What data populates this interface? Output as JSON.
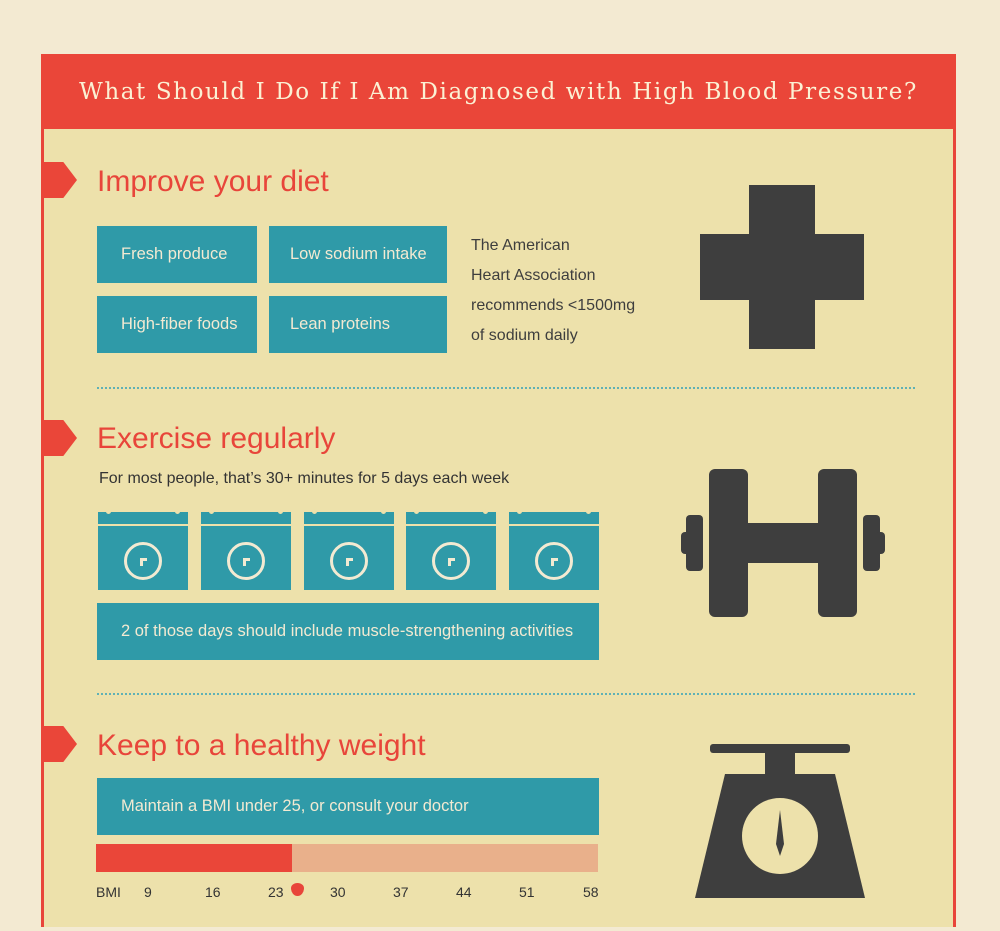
{
  "header": {
    "title": "What Should I Do If I Am Diagnosed with High Blood Pressure?"
  },
  "diet": {
    "title": "Improve your diet",
    "tiles": [
      "Fresh produce",
      "Low sodium intake",
      "High-fiber foods",
      "Lean proteins"
    ],
    "note_lines": [
      "The American",
      "Heart Association",
      "recommends <1500mg",
      "of sodium daily"
    ],
    "icon": "medical-cross-icon"
  },
  "exercise": {
    "title": "Exercise regularly",
    "subtitle": "For most people, that’s 30+ minutes for 5 days each week",
    "calendar_count": 5,
    "banner": "2 of those days should include muscle-strengthening activities",
    "icon": "dumbbell-icon"
  },
  "weight": {
    "title": "Keep to a healthy weight",
    "banner": "Maintain a BMI under 25, or consult your doctor",
    "bmi_label": "BMI",
    "bmi_ticks": [
      "9",
      "16",
      "23",
      "30",
      "37",
      "44",
      "51",
      "58"
    ],
    "bmi_marker": 25,
    "bmi_min": 9,
    "bmi_max": 58,
    "icon": "scale-icon"
  },
  "colors": {
    "accent": "#ea4639",
    "teal": "#2f9aa8",
    "panel": "#ede1ab",
    "icon": "#3e3e3e",
    "bar_light": "#e9b08b"
  }
}
